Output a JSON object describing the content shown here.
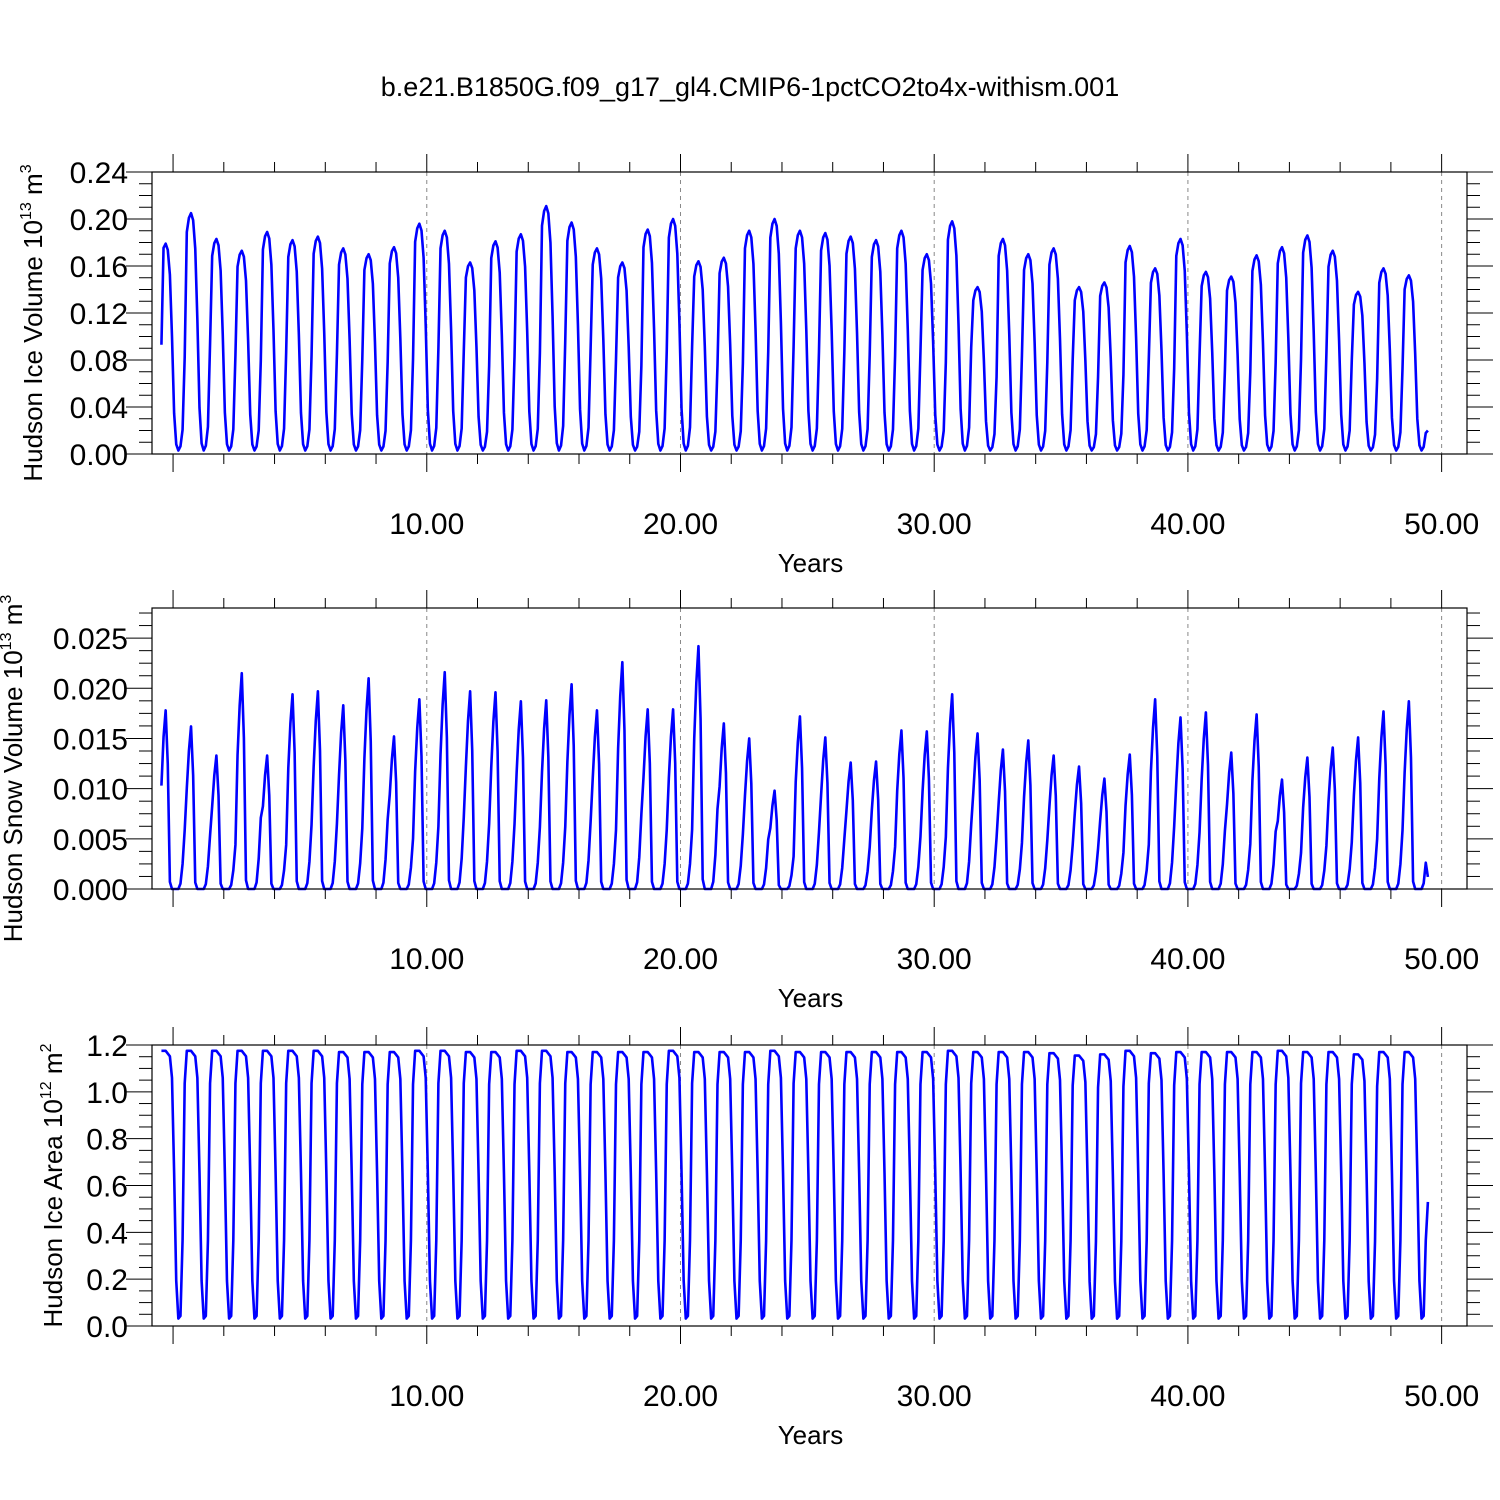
{
  "title": "b.e21.B1850G.f09_g17_gl4.CMIP6-1pctCO2to4x-withism.001",
  "style": {
    "line_color": "#0000ff",
    "grid_color": "#888888"
  },
  "chart_data": [
    {
      "type": "line",
      "ylabel": "Hudson Ice Volume 10",
      "ylabel_exp": "13",
      "ylabel_unit": " m",
      "ylabel_unit_exp": "3",
      "xlabel": "Years",
      "xlim": [
        -0.83,
        51.0
      ],
      "ylim": [
        0.0,
        0.24
      ],
      "xticks": [
        10,
        20,
        30,
        40,
        50
      ],
      "xtick_labels": [
        "10.00",
        "20.00",
        "30.00",
        "40.00",
        "50.00"
      ],
      "yticks": [
        0.0,
        0.04,
        0.08,
        0.12,
        0.16,
        0.2,
        0.24
      ],
      "ytick_labels": [
        "0.00",
        "0.04",
        "0.08",
        "0.12",
        "0.16",
        "0.20",
        "0.24"
      ],
      "grid": "dashed vertical at major x ticks",
      "seasonal_cycle": {
        "annual_peaks": [
          0.179,
          0.205,
          0.183,
          0.173,
          0.189,
          0.182,
          0.185,
          0.175,
          0.17,
          0.176,
          0.196,
          0.19,
          0.163,
          0.181,
          0.187,
          0.211,
          0.197,
          0.175,
          0.163,
          0.191,
          0.2,
          0.164,
          0.167,
          0.19,
          0.2,
          0.19,
          0.188,
          0.185,
          0.182,
          0.19,
          0.17,
          0.198,
          0.142,
          0.183,
          0.17,
          0.175,
          0.142,
          0.146,
          0.177,
          0.158,
          0.183,
          0.155,
          0.151,
          0.169,
          0.176,
          0.186,
          0.173,
          0.138,
          0.158,
          0.152
        ],
        "annual_minimum": 0.003,
        "start_value": 0.093,
        "end_value": 0.02
      }
    },
    {
      "type": "line",
      "ylabel": "Hudson Snow Volume 10",
      "ylabel_exp": "13",
      "ylabel_unit": " m",
      "ylabel_unit_exp": "3",
      "xlabel": "Years",
      "xlim": [
        -0.83,
        51.0
      ],
      "ylim": [
        0.0,
        0.028
      ],
      "xticks": [
        10,
        20,
        30,
        40,
        50
      ],
      "xtick_labels": [
        "10.00",
        "20.00",
        "30.00",
        "40.00",
        "50.00"
      ],
      "yticks": [
        0.0,
        0.005,
        0.01,
        0.015,
        0.02,
        0.025
      ],
      "ytick_labels": [
        "0.000",
        "0.005",
        "0.010",
        "0.015",
        "0.020",
        "0.025"
      ],
      "grid": "dashed vertical at major x ticks",
      "seasonal_cycle": {
        "annual_peaks": [
          0.0178,
          0.0162,
          0.0133,
          0.0215,
          0.0133,
          0.0194,
          0.0197,
          0.0183,
          0.021,
          0.0152,
          0.0189,
          0.0216,
          0.0197,
          0.0196,
          0.0187,
          0.0188,
          0.0204,
          0.0178,
          0.0226,
          0.0179,
          0.0179,
          0.0242,
          0.0165,
          0.015,
          0.0098,
          0.0172,
          0.0151,
          0.0126,
          0.0127,
          0.0158,
          0.0157,
          0.0194,
          0.0155,
          0.0139,
          0.0148,
          0.0133,
          0.0122,
          0.011,
          0.0134,
          0.0189,
          0.0171,
          0.0176,
          0.0136,
          0.0174,
          0.0109,
          0.0131,
          0.0141,
          0.0151,
          0.0177,
          0.0187
        ],
        "annual_minimum": 0.0,
        "start_value": 0.0103,
        "end_value": 0.0012
      }
    },
    {
      "type": "line",
      "ylabel": "Hudson Ice Area 10",
      "ylabel_exp": "12",
      "ylabel_unit": " m",
      "ylabel_unit_exp": "2",
      "xlabel": "Years",
      "xlim": [
        -0.83,
        51.0
      ],
      "ylim": [
        0.0,
        1.2
      ],
      "xticks": [
        10,
        20,
        30,
        40,
        50
      ],
      "xtick_labels": [
        "10.00",
        "20.00",
        "30.00",
        "40.00",
        "50.00"
      ],
      "yticks": [
        0.0,
        0.2,
        0.4,
        0.6,
        0.8,
        1.0,
        1.2
      ],
      "ytick_labels": [
        "0.0",
        "0.2",
        "0.4",
        "0.6",
        "0.8",
        "1.0",
        "1.2"
      ],
      "grid": "dashed vertical at major x ticks",
      "seasonal_cycle": {
        "annual_peaks": [
          1.175,
          1.175,
          1.175,
          1.175,
          1.175,
          1.175,
          1.175,
          1.17,
          1.17,
          1.17,
          1.175,
          1.175,
          1.17,
          1.17,
          1.175,
          1.175,
          1.17,
          1.17,
          1.17,
          1.17,
          1.175,
          1.17,
          1.17,
          1.17,
          1.175,
          1.17,
          1.17,
          1.17,
          1.17,
          1.17,
          1.17,
          1.175,
          1.17,
          1.17,
          1.17,
          1.165,
          1.155,
          1.16,
          1.175,
          1.165,
          1.17,
          1.17,
          1.17,
          1.17,
          1.175,
          1.17,
          1.17,
          1.16,
          1.17,
          1.17
        ],
        "annual_minimum": 0.02,
        "start_value": 1.175,
        "end_value": 0.53
      }
    }
  ]
}
